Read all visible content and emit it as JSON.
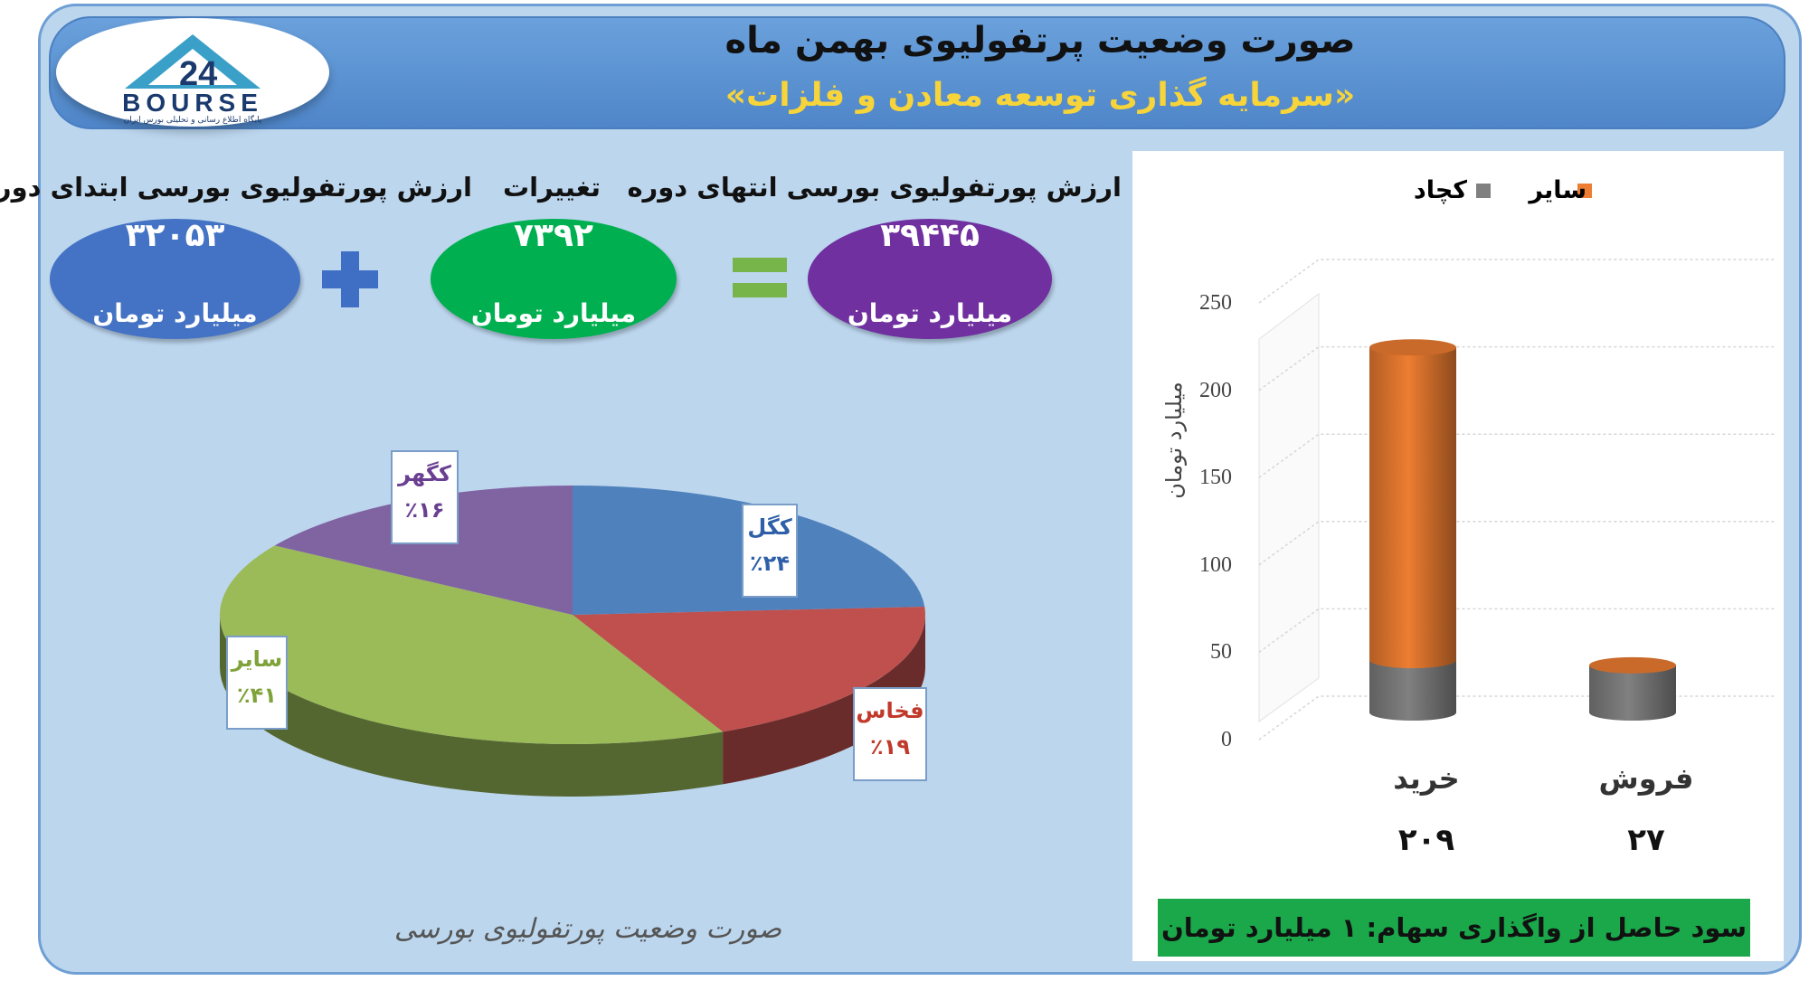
{
  "header": {
    "title": "صورت وضعیت پرتفولیوی بهمن ماه",
    "subtitle": "«سرمایه گذاری توسعه معادن و فلزات»"
  },
  "logo": {
    "text": "BOURSE",
    "tagline": "پایگاه اطلاع رسانی و تحلیلی بورس ایران"
  },
  "summary": {
    "start": {
      "label": "ارزش پورتفولیوی بورسی ابتدای دوره",
      "value": "۳۲۰۵۳",
      "unit": "میلیارد تومان"
    },
    "change": {
      "label": "تغییرات",
      "value": "۷۳۹۲",
      "unit": "میلیارد تومان"
    },
    "end": {
      "label": "ارزش پورتفولیوی بورسی انتهای دوره",
      "value": "۳۹۴۴۵",
      "unit": "میلیارد تومان"
    },
    "colors": {
      "start": "#4472c4",
      "change": "#00b050",
      "end": "#7030a0"
    }
  },
  "pie_caption": "صورت وضعیت پورتفولیوی بورسی",
  "bar_footer": "سود حاصل از واگذاری سهام: ۱ میلیارد تومان",
  "chart_data": [
    {
      "type": "pie",
      "title": "صورت وضعیت پورتفولیوی بورسی",
      "slices": [
        {
          "name": "کگل",
          "value": 24,
          "label": "٪۲۴",
          "color": "#4f81bd"
        },
        {
          "name": "فخاس",
          "value": 19,
          "label": "٪۱۹",
          "color": "#c0504d"
        },
        {
          "name": "سایر",
          "value": 41,
          "label": "٪۴۱",
          "color": "#9bbb59"
        },
        {
          "name": "کگهر",
          "value": 16,
          "label": "٪۱۶",
          "color": "#8064a2"
        }
      ]
    },
    {
      "type": "bar",
      "stacked": true,
      "categories": [
        "خرید",
        "فروش"
      ],
      "totals": [
        "۲۰۹",
        "۲۷"
      ],
      "series": [
        {
          "name": "کچاد",
          "color": "#808080",
          "values": [
            30,
            27
          ]
        },
        {
          "name": "سایر",
          "color": "#ed7d31",
          "values": [
            179,
            0
          ]
        }
      ],
      "ylabel": "میلیارد تومان",
      "ylim": [
        0,
        250
      ],
      "yticks": [
        0,
        50,
        100,
        150,
        200,
        250
      ],
      "grid": true,
      "legend": "top"
    }
  ]
}
